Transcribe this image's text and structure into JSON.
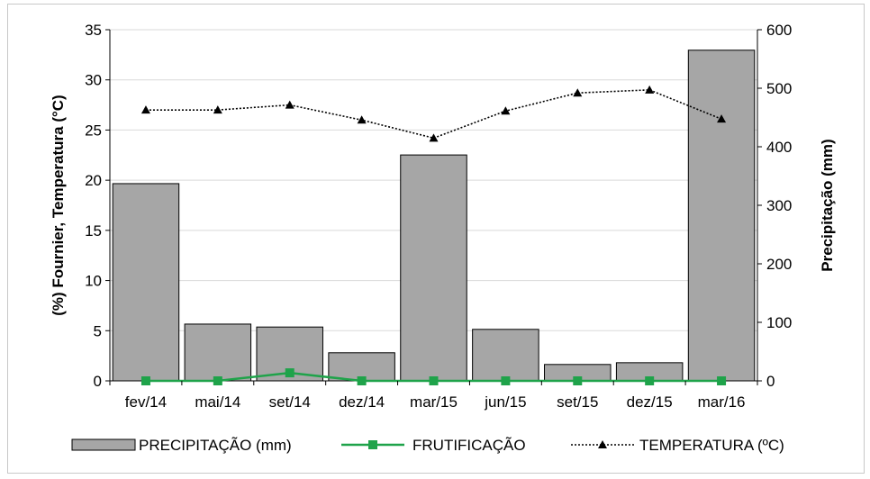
{
  "chart_data": {
    "type": "bar",
    "categories": [
      "fev/14",
      "mai/14",
      "set/14",
      "dez/14",
      "mar/15",
      "jun/15",
      "set/15",
      "dez/15",
      "mar/16"
    ],
    "series": [
      {
        "name": "PRECIPITAÇÃO (mm)",
        "type": "bar",
        "axis": "right",
        "values": [
          337,
          97,
          92,
          48,
          386,
          88,
          28,
          31,
          565
        ],
        "color": "#a6a6a6"
      },
      {
        "name": "FRUTIFICAÇÃO",
        "type": "line",
        "axis": "left",
        "values": [
          0,
          0,
          0.8,
          0,
          0,
          0,
          0,
          0,
          0
        ],
        "color": "#1fa34a"
      },
      {
        "name": "TEMPERATURA (ºC)",
        "type": "line",
        "axis": "left",
        "values": [
          27.0,
          27.0,
          27.5,
          26.0,
          24.2,
          26.9,
          28.7,
          29.0,
          26.1
        ],
        "color": "#000000"
      }
    ],
    "left_axis": {
      "label": "(%) Fournier, Temperatura (°C)",
      "ylim": [
        0,
        35
      ],
      "ticks": [
        0,
        5,
        10,
        15,
        20,
        25,
        30,
        35
      ]
    },
    "right_axis": {
      "label": "Precipitação (mm)",
      "ylim": [
        0,
        600
      ],
      "ticks": [
        0,
        100,
        200,
        300,
        400,
        500,
        600
      ]
    },
    "grid": true,
    "legend_position": "bottom"
  }
}
